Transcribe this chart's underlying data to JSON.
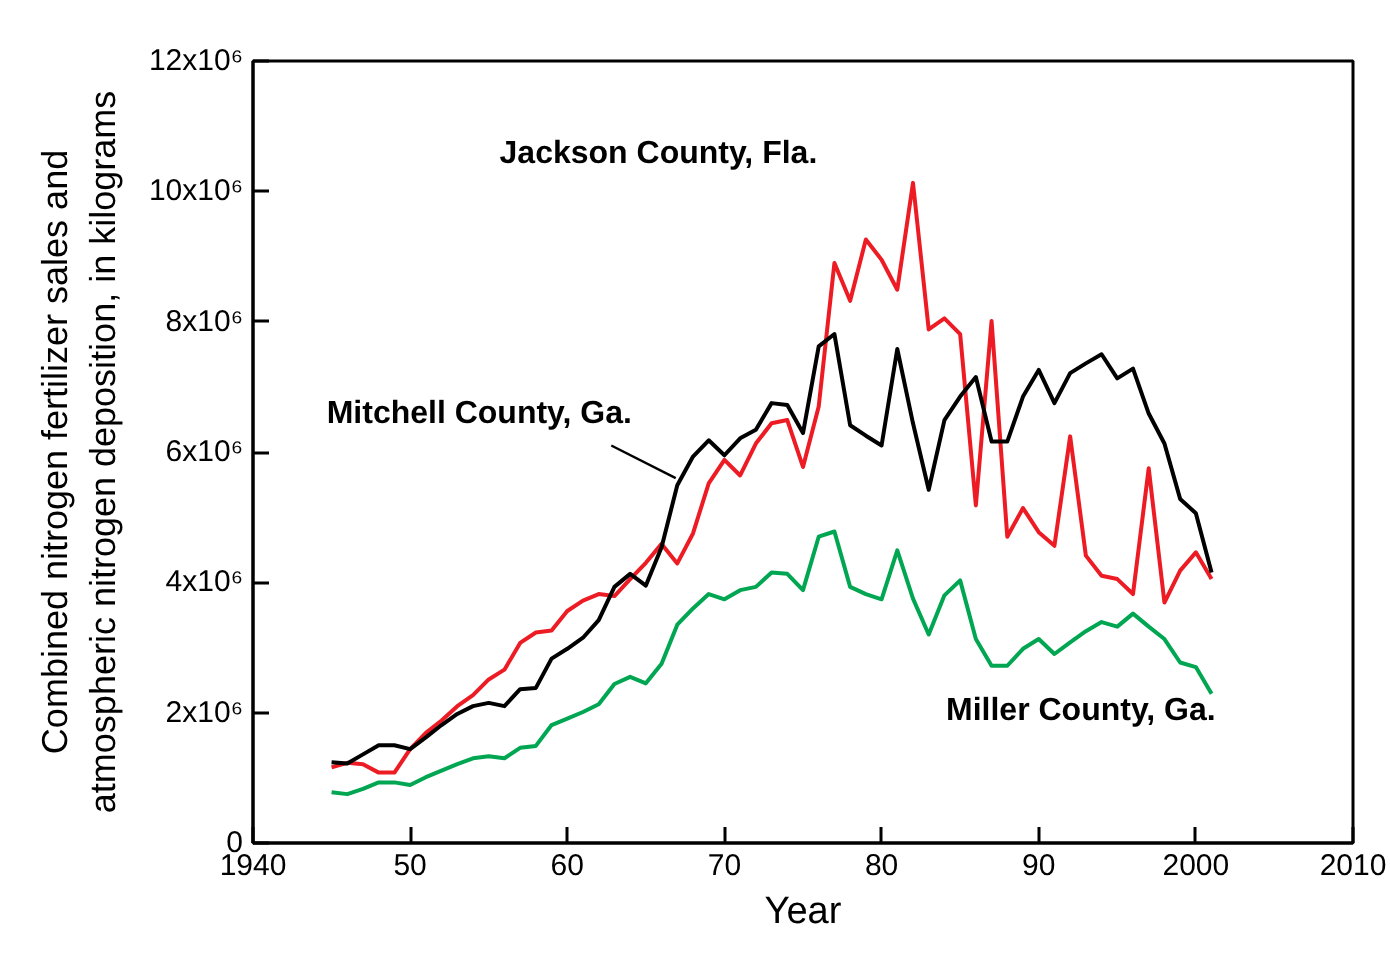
{
  "chart_data": {
    "type": "line",
    "xlabel": "Year",
    "ylabel": "Combined nitrogen fertilizer sales and\natmospheric nitrogen deposition, in kilograms",
    "x": [
      1945,
      1946,
      1947,
      1948,
      1949,
      1950,
      1951,
      1952,
      1953,
      1954,
      1955,
      1956,
      1957,
      1958,
      1959,
      1960,
      1961,
      1962,
      1963,
      1964,
      1965,
      1966,
      1967,
      1968,
      1969,
      1970,
      1971,
      1972,
      1973,
      1974,
      1975,
      1976,
      1977,
      1978,
      1979,
      1980,
      1981,
      1982,
      1983,
      1984,
      1985,
      1986,
      1987,
      1988,
      1989,
      1990,
      1991,
      1992,
      1993,
      1994,
      1995,
      1996,
      1997,
      1998,
      1999,
      2000,
      2001
    ],
    "series": [
      {
        "name": "Jackson County, Fla.",
        "color": "#ed1c24",
        "values": [
          1160000,
          1230000,
          1210000,
          1080000,
          1080000,
          1440000,
          1690000,
          1880000,
          2100000,
          2270000,
          2510000,
          2660000,
          3070000,
          3230000,
          3260000,
          3560000,
          3720000,
          3820000,
          3790000,
          4050000,
          4300000,
          4590000,
          4290000,
          4750000,
          5520000,
          5880000,
          5640000,
          6130000,
          6440000,
          6490000,
          5770000,
          6700000,
          8900000,
          8320000,
          9260000,
          8950000,
          8490000,
          10130000,
          7880000,
          8050000,
          7810000,
          5180000,
          8010000,
          4700000,
          5140000,
          4770000,
          4560000,
          6240000,
          4410000,
          4100000,
          4050000,
          3820000,
          5750000,
          3690000,
          4180000,
          4460000,
          4050000
        ]
      },
      {
        "name": "Mitchell County, Ga.",
        "color": "#000000",
        "values": [
          1240000,
          1220000,
          1360000,
          1500000,
          1500000,
          1440000,
          1620000,
          1810000,
          1980000,
          2100000,
          2150000,
          2100000,
          2360000,
          2380000,
          2830000,
          2980000,
          3150000,
          3420000,
          3930000,
          4130000,
          3950000,
          4540000,
          5490000,
          5930000,
          6180000,
          5950000,
          6210000,
          6340000,
          6750000,
          6720000,
          6290000,
          7620000,
          7810000,
          6410000,
          6250000,
          6100000,
          7580000,
          6440000,
          5420000,
          6490000,
          6850000,
          7150000,
          6160000,
          6160000,
          6850000,
          7260000,
          6750000,
          7210000,
          7360000,
          7500000,
          7130000,
          7280000,
          6590000,
          6130000,
          5280000,
          5060000,
          4150000
        ]
      },
      {
        "name": "Miller County, Ga.",
        "color": "#00a651",
        "values": [
          780000,
          750000,
          830000,
          930000,
          930000,
          890000,
          1010000,
          1110000,
          1210000,
          1300000,
          1330000,
          1300000,
          1460000,
          1490000,
          1810000,
          1910000,
          2010000,
          2130000,
          2440000,
          2550000,
          2450000,
          2750000,
          3350000,
          3600000,
          3820000,
          3740000,
          3880000,
          3930000,
          4150000,
          4130000,
          3880000,
          4700000,
          4780000,
          3930000,
          3820000,
          3740000,
          4490000,
          3750000,
          3200000,
          3800000,
          4030000,
          3130000,
          2720000,
          2720000,
          2980000,
          3130000,
          2900000,
          3080000,
          3250000,
          3390000,
          3320000,
          3520000,
          3320000,
          3130000,
          2770000,
          2700000,
          2290000
        ]
      }
    ],
    "xlim": [
      1940,
      2010
    ],
    "xticks": [
      1940,
      {
        "value": 1950,
        "label": "50"
      },
      {
        "value": 1960,
        "label": "60"
      },
      {
        "value": 1970,
        "label": "70"
      },
      {
        "value": 1980,
        "label": "80"
      },
      {
        "value": 1990,
        "label": "90"
      },
      2000,
      2010
    ],
    "ylim": [
      0,
      12000000
    ],
    "yticks": [
      0,
      {
        "value": 2000000,
        "label": "2x10⁶"
      },
      {
        "value": 4000000,
        "label": "4x10⁶"
      },
      {
        "value": 6000000,
        "label": "6x10⁶"
      },
      {
        "value": 8000000,
        "label": "8x10⁶"
      },
      {
        "value": 10000000,
        "label": "10x10⁶"
      },
      {
        "value": 12000000,
        "label": "12x10⁶"
      }
    ],
    "grid": false,
    "legend": false,
    "marker": "none",
    "line_style": "solid"
  }
}
